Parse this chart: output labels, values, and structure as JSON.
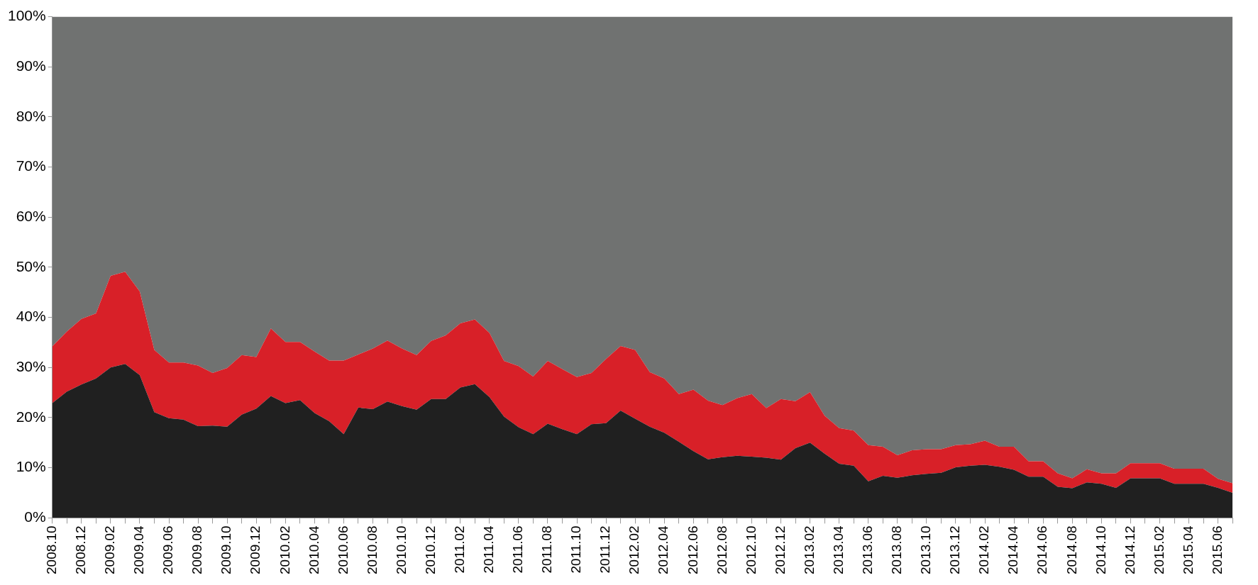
{
  "chart_data": {
    "type": "area",
    "stacked": true,
    "categories": [
      "2008.10",
      null,
      "2008.12",
      null,
      "2009.02",
      null,
      "2009.04",
      null,
      "2009.06",
      null,
      "2009.08",
      null,
      "2009.10",
      null,
      "2009.12",
      null,
      "2010.02",
      null,
      "2010.04",
      null,
      "2010.06",
      null,
      "2010.08",
      null,
      "2010.10",
      null,
      "2010.12",
      null,
      "2011.02",
      null,
      "2011.04",
      null,
      "2011.06",
      null,
      "2011.08",
      null,
      "2011.10",
      null,
      "2011.12",
      null,
      "2012.02",
      null,
      "2012.04",
      null,
      "2012.06",
      null,
      "2012.08",
      null,
      "2012.10",
      null,
      "2012.12",
      null,
      "2013.02",
      null,
      "2013.04",
      null,
      "2013.06",
      null,
      "2013.08",
      null,
      "2013.10",
      null,
      "2013.12",
      null,
      "2014.02",
      null,
      "2014.04",
      null,
      "2014.06",
      null,
      "2014.08",
      null,
      "2014.10",
      null,
      "2014.12",
      null,
      "2015.02",
      null,
      "2015.04",
      null,
      "2015.06",
      null
    ],
    "series": [
      {
        "color": "#202020",
        "values": [
          22.9,
          25.2,
          26.6,
          27.8,
          30.0,
          30.7,
          28.5,
          21.1,
          19.9,
          19.6,
          18.3,
          18.4,
          18.2,
          20.6,
          21.8,
          24.3,
          22.9,
          23.5,
          20.9,
          19.3,
          16.7,
          22.0,
          21.7,
          23.2,
          22.3,
          21.6,
          23.7,
          23.7,
          26.0,
          26.7,
          24.1,
          20.2,
          18.1,
          16.7,
          18.8,
          17.7,
          16.7,
          18.7,
          18.9,
          21.4,
          19.8,
          18.2,
          17.0,
          15.2,
          13.3,
          11.7,
          12.1,
          12.4,
          12.2,
          12.0,
          11.6,
          13.9,
          15.0,
          12.8,
          10.8,
          10.4,
          7.3,
          8.4,
          8.0,
          8.5,
          8.8,
          9.0,
          10.1,
          10.4,
          10.6,
          10.2,
          9.6,
          8.2,
          8.2,
          6.2,
          5.9,
          7.1,
          6.8,
          6.0,
          7.9,
          7.9,
          7.9,
          6.8,
          6.8,
          6.8,
          6.0,
          5.0
        ]
      },
      {
        "color": "#d82028",
        "values": [
          11.3,
          12.0,
          13.1,
          13.0,
          18.3,
          18.4,
          16.7,
          12.4,
          11.1,
          11.4,
          12.1,
          10.5,
          11.7,
          11.9,
          10.3,
          13.5,
          12.2,
          11.6,
          12.3,
          12.1,
          14.7,
          10.6,
          12.1,
          12.2,
          11.5,
          10.9,
          11.6,
          12.7,
          12.8,
          12.9,
          12.8,
          11.1,
          12.2,
          11.5,
          12.5,
          12.0,
          11.4,
          10.2,
          12.8,
          12.9,
          13.7,
          10.9,
          10.8,
          9.5,
          12.3,
          11.7,
          10.4,
          11.5,
          12.5,
          9.9,
          12.1,
          9.4,
          10.1,
          7.6,
          7.1,
          7.0,
          7.2,
          5.8,
          4.5,
          5.0,
          4.9,
          4.7,
          4.4,
          4.3,
          4.8,
          4.0,
          4.6,
          3.1,
          3.1,
          2.7,
          2.0,
          2.6,
          2.1,
          2.9,
          3.0,
          3.0,
          3.0,
          3.0,
          3.0,
          3.0,
          1.8,
          1.9
        ]
      },
      {
        "color": "#707271",
        "values": [
          65.8,
          62.8,
          60.3,
          59.2,
          51.7,
          50.9,
          54.8,
          66.5,
          69.0,
          69.0,
          69.6,
          71.1,
          70.1,
          67.5,
          67.9,
          62.2,
          64.9,
          64.9,
          66.8,
          68.6,
          68.6,
          67.4,
          66.2,
          64.6,
          66.2,
          67.5,
          64.7,
          63.6,
          61.2,
          60.4,
          63.1,
          68.7,
          69.7,
          71.8,
          68.7,
          70.3,
          71.9,
          71.1,
          68.3,
          65.7,
          66.5,
          70.9,
          72.2,
          75.3,
          74.4,
          76.6,
          77.5,
          76.1,
          75.3,
          78.1,
          76.3,
          76.7,
          74.9,
          79.6,
          82.1,
          82.6,
          85.5,
          85.8,
          87.5,
          86.5,
          86.3,
          86.3,
          85.5,
          85.3,
          84.6,
          85.8,
          85.8,
          88.7,
          88.7,
          91.1,
          92.1,
          90.3,
          91.1,
          91.1,
          89.1,
          89.1,
          89.1,
          90.2,
          90.2,
          90.2,
          92.2,
          93.1
        ]
      }
    ],
    "ylim": [
      0,
      100
    ],
    "yticks": [
      {
        "value": 0,
        "label": "0%"
      },
      {
        "value": 10,
        "label": "10%"
      },
      {
        "value": 20,
        "label": "20%"
      },
      {
        "value": 30,
        "label": "30%"
      },
      {
        "value": 40,
        "label": "40%"
      },
      {
        "value": 50,
        "label": "50%"
      },
      {
        "value": 60,
        "label": "60%"
      },
      {
        "value": 70,
        "label": "70%"
      },
      {
        "value": 80,
        "label": "80%"
      },
      {
        "value": 90,
        "label": "90%"
      },
      {
        "value": 100,
        "label": "100%"
      }
    ],
    "grid": false,
    "legend": false
  }
}
